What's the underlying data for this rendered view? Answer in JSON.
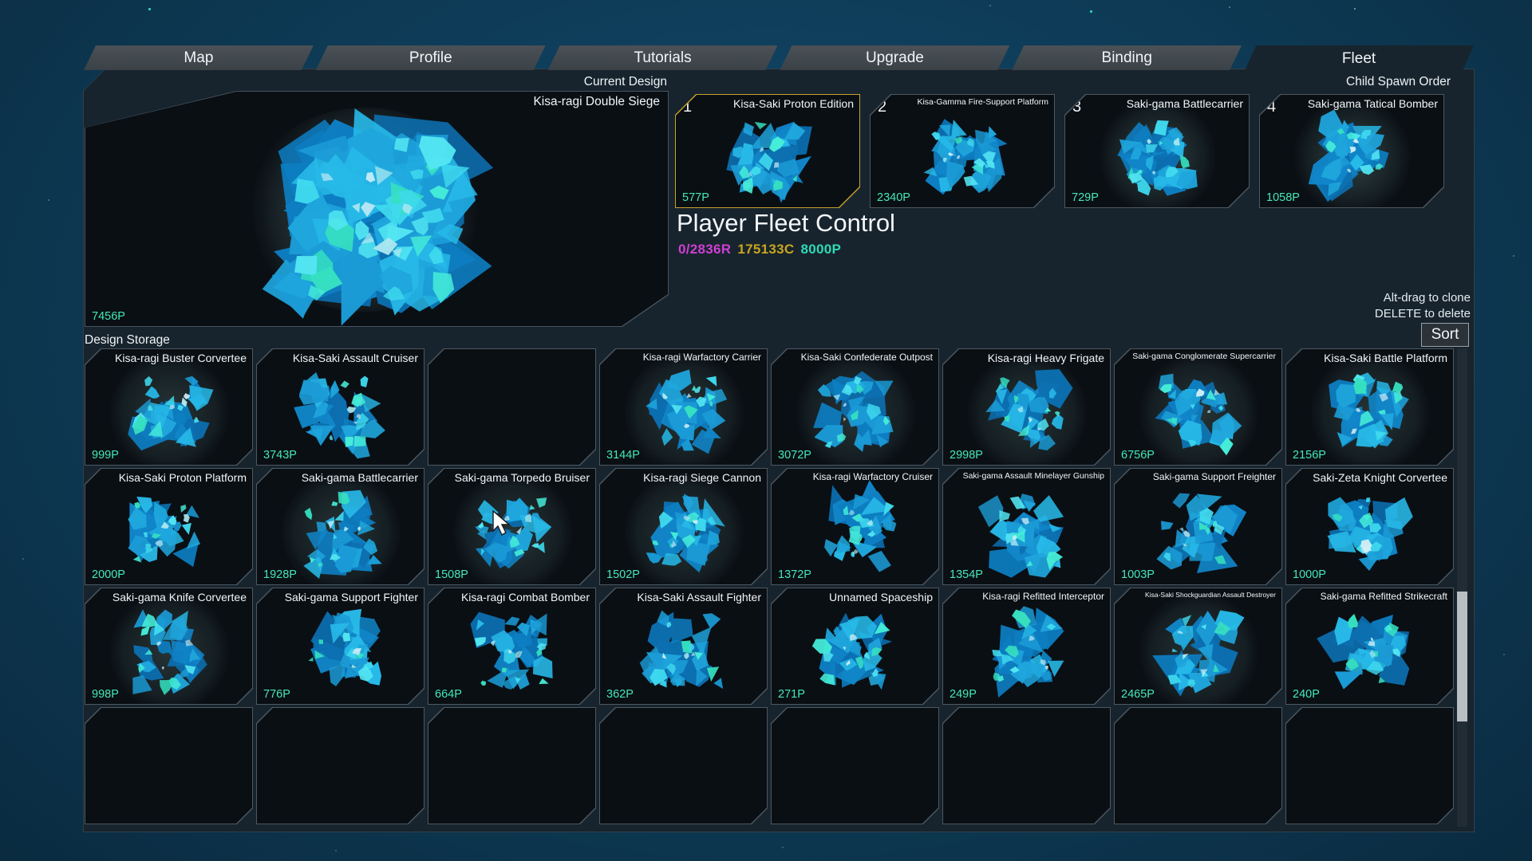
{
  "tabs": [
    {
      "label": "Map",
      "active": false
    },
    {
      "label": "Profile",
      "active": false
    },
    {
      "label": "Tutorials",
      "active": false
    },
    {
      "label": "Upgrade",
      "active": false
    },
    {
      "label": "Binding",
      "active": false
    },
    {
      "label": "Fleet",
      "active": true
    }
  ],
  "current_design": {
    "label": "Current Design",
    "name": "Kisa-ragi Double Siege",
    "points": "7456P"
  },
  "child_spawn": {
    "label": "Child Spawn Order",
    "cards": [
      {
        "num": "1",
        "name": "Kisa-Saki Proton Edition",
        "points": "577P",
        "selected": true,
        "glow": false
      },
      {
        "num": "2",
        "name": "Kisa-Gamma Fire-Support Platform",
        "points": "2340P",
        "selected": false,
        "glow": false
      },
      {
        "num": "3",
        "name": "Saki-gama Battlecarrier",
        "points": "729P",
        "selected": false,
        "glow": true
      },
      {
        "num": "4",
        "name": "Saki-gama Tatical Bomber",
        "points": "1058P",
        "selected": false,
        "glow": true
      }
    ]
  },
  "fleet_control": {
    "title": "Player Fleet Control",
    "resources": [
      {
        "text": "0/2836R",
        "color": "#cf3fd2"
      },
      {
        "text": "175133C",
        "color": "#c9a51d"
      },
      {
        "text": "8000P",
        "color": "#2fd9b5"
      }
    ]
  },
  "hints": {
    "clone": "Alt-drag to clone",
    "delete": "DELETE to delete",
    "sort_label": "Sort"
  },
  "design_storage": {
    "label": "Design Storage",
    "rows": [
      [
        {
          "name": "Kisa-ragi Buster Corvertee",
          "points": "999P",
          "glow": true
        },
        {
          "name": "Kisa-Saki Assault Cruiser",
          "points": "3743P",
          "glow": false
        },
        {
          "empty": true
        },
        {
          "name": "Kisa-ragi Warfactory Carrier",
          "points": "3144P",
          "glow": true
        },
        {
          "name": "Kisa-Saki Confederate Outpost",
          "points": "3072P",
          "glow": true
        },
        {
          "name": "Kisa-ragi Heavy Frigate",
          "points": "2998P",
          "glow": true
        },
        {
          "name": "Saki-gama Conglomerate Supercarrier",
          "points": "6756P",
          "glow": true
        },
        {
          "name": "Kisa-Saki Battle Platform",
          "points": "2156P",
          "glow": true
        }
      ],
      [
        {
          "name": "Kisa-Saki Proton Platform",
          "points": "2000P",
          "glow": false
        },
        {
          "name": "Saki-gama Battlecarrier",
          "points": "1928P",
          "glow": true
        },
        {
          "name": "Saki-gama Torpedo Bruiser",
          "points": "1508P",
          "glow": true
        },
        {
          "name": "Kisa-ragi Siege Cannon",
          "points": "1502P",
          "glow": true
        },
        {
          "name": "Kisa-ragi Warfactory Cruiser",
          "points": "1372P",
          "glow": false
        },
        {
          "name": "Saki-gama Assault Minelayer Gunship",
          "points": "1354P",
          "glow": false
        },
        {
          "name": "Saki-gama Support Freighter",
          "points": "1003P",
          "glow": false
        },
        {
          "name": "Saki-Zeta Knight Corvertee",
          "points": "1000P",
          "glow": false
        }
      ],
      [
        {
          "name": "Saki-gama Knife Corvertee",
          "points": "998P",
          "glow": true
        },
        {
          "name": "Saki-gama Support Fighter",
          "points": "776P",
          "glow": false
        },
        {
          "name": "Kisa-ragi Combat Bomber",
          "points": "664P",
          "glow": false
        },
        {
          "name": "Kisa-Saki Assault Fighter",
          "points": "362P",
          "glow": false
        },
        {
          "name": "Unnamed Spaceship",
          "points": "271P",
          "glow": false
        },
        {
          "name": "Kisa-ragi Refitted Interceptor",
          "points": "249P",
          "glow": false
        },
        {
          "name": "Kisa-Saki Shockguardian Assault Destroyer",
          "points": "2465P",
          "glow": true
        },
        {
          "name": "Saki-gama Refitted Strikecraft",
          "points": "240P",
          "glow": false
        }
      ],
      [
        {
          "empty": true
        },
        {
          "empty": true
        },
        {
          "empty": true
        },
        {
          "empty": true
        },
        {
          "empty": true
        },
        {
          "empty": true
        },
        {
          "empty": true
        },
        {
          "empty": true
        }
      ]
    ]
  }
}
